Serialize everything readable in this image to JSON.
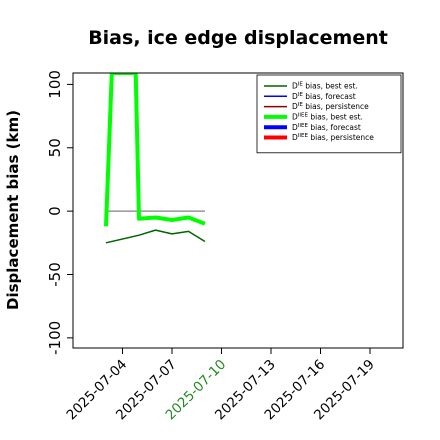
{
  "chart_data": {
    "type": "line",
    "title": "Bias, ice edge displacement",
    "ylabel": "Displacement bias (km)",
    "xlabel": "",
    "ylim": [
      -108,
      109
    ],
    "xlim": [
      "2025-07-01",
      "2025-07-21"
    ],
    "y_ticks": [
      -100,
      -50,
      0,
      50,
      100
    ],
    "x_ticks": [
      {
        "date": "2025-07-04",
        "label": "2025-07-04",
        "color": "#000000"
      },
      {
        "date": "2025-07-07",
        "label": "2025-07-07",
        "color": "#000000"
      },
      {
        "date": "2025-07-10",
        "label": "2025-07-10",
        "color": "#228b22"
      },
      {
        "date": "2025-07-13",
        "label": "2025-07-13",
        "color": "#000000"
      },
      {
        "date": "2025-07-16",
        "label": "2025-07-16",
        "color": "#000000"
      },
      {
        "date": "2025-07-19",
        "label": "2025-07-19",
        "color": "#000000"
      }
    ],
    "zero_line": {
      "x": [
        "2025-07-03",
        "2025-07-09"
      ],
      "y": 0
    },
    "legend_position": "top-right",
    "series": [
      {
        "name": "D^IE bias, best est.",
        "sup": "IE",
        "text": " bias, best est.",
        "color": "#006400",
        "width": 1.5,
        "x": [
          "2025-07-03",
          "2025-07-05",
          "2025-07-06",
          "2025-07-07",
          "2025-07-08",
          "2025-07-09"
        ],
        "y": [
          -25,
          -19,
          -15,
          -18,
          -16,
          -24
        ]
      },
      {
        "name": "D^IE bias, forecast",
        "sup": "IE",
        "text": " bias, forecast",
        "color": "#0000ff",
        "width": 1.5,
        "x": [],
        "y": []
      },
      {
        "name": "D^IE bias, persistence",
        "sup": "IE",
        "text": " bias, persistence",
        "color": "#8b0000",
        "width": 1.5,
        "x": [],
        "y": []
      },
      {
        "name": "D^IIEE bias, best est.",
        "sup": "IIEE",
        "text": " bias, best est.",
        "color": "#00ff00",
        "width": 4,
        "x": [
          "2025-07-03",
          "2025-07-03.35",
          "2025-07-04.8",
          "2025-07-05",
          "2025-07-06",
          "2025-07-07",
          "2025-07-08",
          "2025-07-09"
        ],
        "y": [
          -12,
          109,
          109,
          -6,
          -5,
          -7,
          -5,
          -10
        ]
      },
      {
        "name": "D^IIEE bias, forecast",
        "sup": "IIEE",
        "text": " bias, forecast",
        "color": "#0000ff",
        "width": 4,
        "x": [],
        "y": []
      },
      {
        "name": "D^IIEE bias, persistence",
        "sup": "IIEE",
        "text": " bias, persistence",
        "color": "#ff0000",
        "width": 4,
        "x": [],
        "y": []
      }
    ]
  }
}
